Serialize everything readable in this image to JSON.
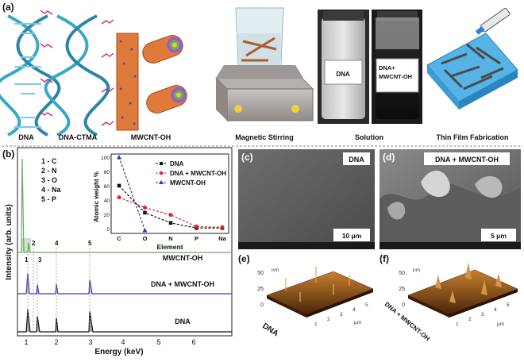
{
  "panel_a": {
    "letter": "(a)",
    "stage_labels": [
      "DNA",
      "DNA-CTMA",
      "MWCNT-OH",
      "Magnetic Stirring",
      "Solution",
      "Thin Film Fabrication"
    ],
    "vial_left_label": "DNA",
    "vial_right_label_1": "DNA+",
    "vial_right_label_2": "MWCNT-OH"
  },
  "panel_b": {
    "letter": "(b)",
    "peak_key": [
      "1 - C",
      "2 - N",
      "3 - O",
      "4 - Na",
      "5 - P"
    ],
    "trace_labels": [
      "MWCNT-OH",
      "DNA + MWCNT-OH",
      "DNA"
    ],
    "peak_numbers": [
      "1",
      "2",
      "3",
      "4",
      "5"
    ],
    "colors": {
      "mwcnt": "#6aa86a",
      "dna_mwcnt": "#3b3fae",
      "dna": "#111111"
    }
  },
  "panel_c": {
    "letter": "(c)",
    "tag": "DNA",
    "scale": "10 μm"
  },
  "panel_d": {
    "letter": "(d)",
    "tag": "DNA + MWCNT-OH",
    "scale": "5 μm"
  },
  "panel_e": {
    "letter": "(e)",
    "unit_nm": "nm",
    "z_ticks": [
      "0",
      "25",
      "50"
    ],
    "sample": "DNA",
    "x_ticks": [
      "1",
      "2",
      "3",
      "4",
      "5"
    ],
    "y_ticks": [
      "1",
      "2",
      "3",
      "4",
      "5"
    ],
    "unit_um": "μm"
  },
  "panel_f": {
    "letter": "(f)",
    "unit_nm": "nm",
    "z_ticks": [
      "0",
      "25",
      "50"
    ],
    "sample": "DNA + MWCNT-OH",
    "x_ticks": [
      "1",
      "2",
      "3",
      "4",
      "5"
    ],
    "y_ticks": [
      "1",
      "2",
      "3",
      "4",
      "5"
    ],
    "unit_um": "μm"
  },
  "chart_data": [
    {
      "type": "line",
      "title": "",
      "xlabel": "Energy (keV)",
      "ylabel": "Intensity (arb. units)",
      "xlim": [
        1,
        7
      ],
      "xticks": [
        "1",
        "2",
        "3",
        "4",
        "5",
        "6"
      ],
      "series": [
        {
          "name": "MWCNT-OH",
          "peaks_keV": [
            0.28,
            0.52
          ],
          "color": "#6aa86a"
        },
        {
          "name": "DNA + MWCNT-OH",
          "peaks_keV": [
            1.04,
            1.48,
            2.01,
            3.0
          ],
          "color": "#3b3fae"
        },
        {
          "name": "DNA",
          "peaks_keV": [
            1.04,
            1.48,
            2.01,
            3.0
          ],
          "color": "#111111"
        }
      ]
    },
    {
      "type": "line",
      "title": "",
      "xlabel": "Element",
      "ylabel": "Atomic weight %",
      "categories": [
        "C",
        "O",
        "N",
        "P",
        "Na"
      ],
      "ylim": [
        0,
        100
      ],
      "yticks": [
        "0",
        "20",
        "40",
        "60",
        "80",
        "100"
      ],
      "series": [
        {
          "name": "DNA",
          "values": [
            61,
            24,
            10,
            3,
            3
          ],
          "color": "#111111"
        },
        {
          "name": "DNA + MWCNT-OH",
          "values": [
            45,
            31,
            21,
            5,
            4
          ],
          "color": "#e0262b"
        },
        {
          "name": "MWCNT-OH",
          "values": [
            100,
            0,
            null,
            null,
            null
          ],
          "color": "#2b3bb0"
        }
      ]
    }
  ]
}
